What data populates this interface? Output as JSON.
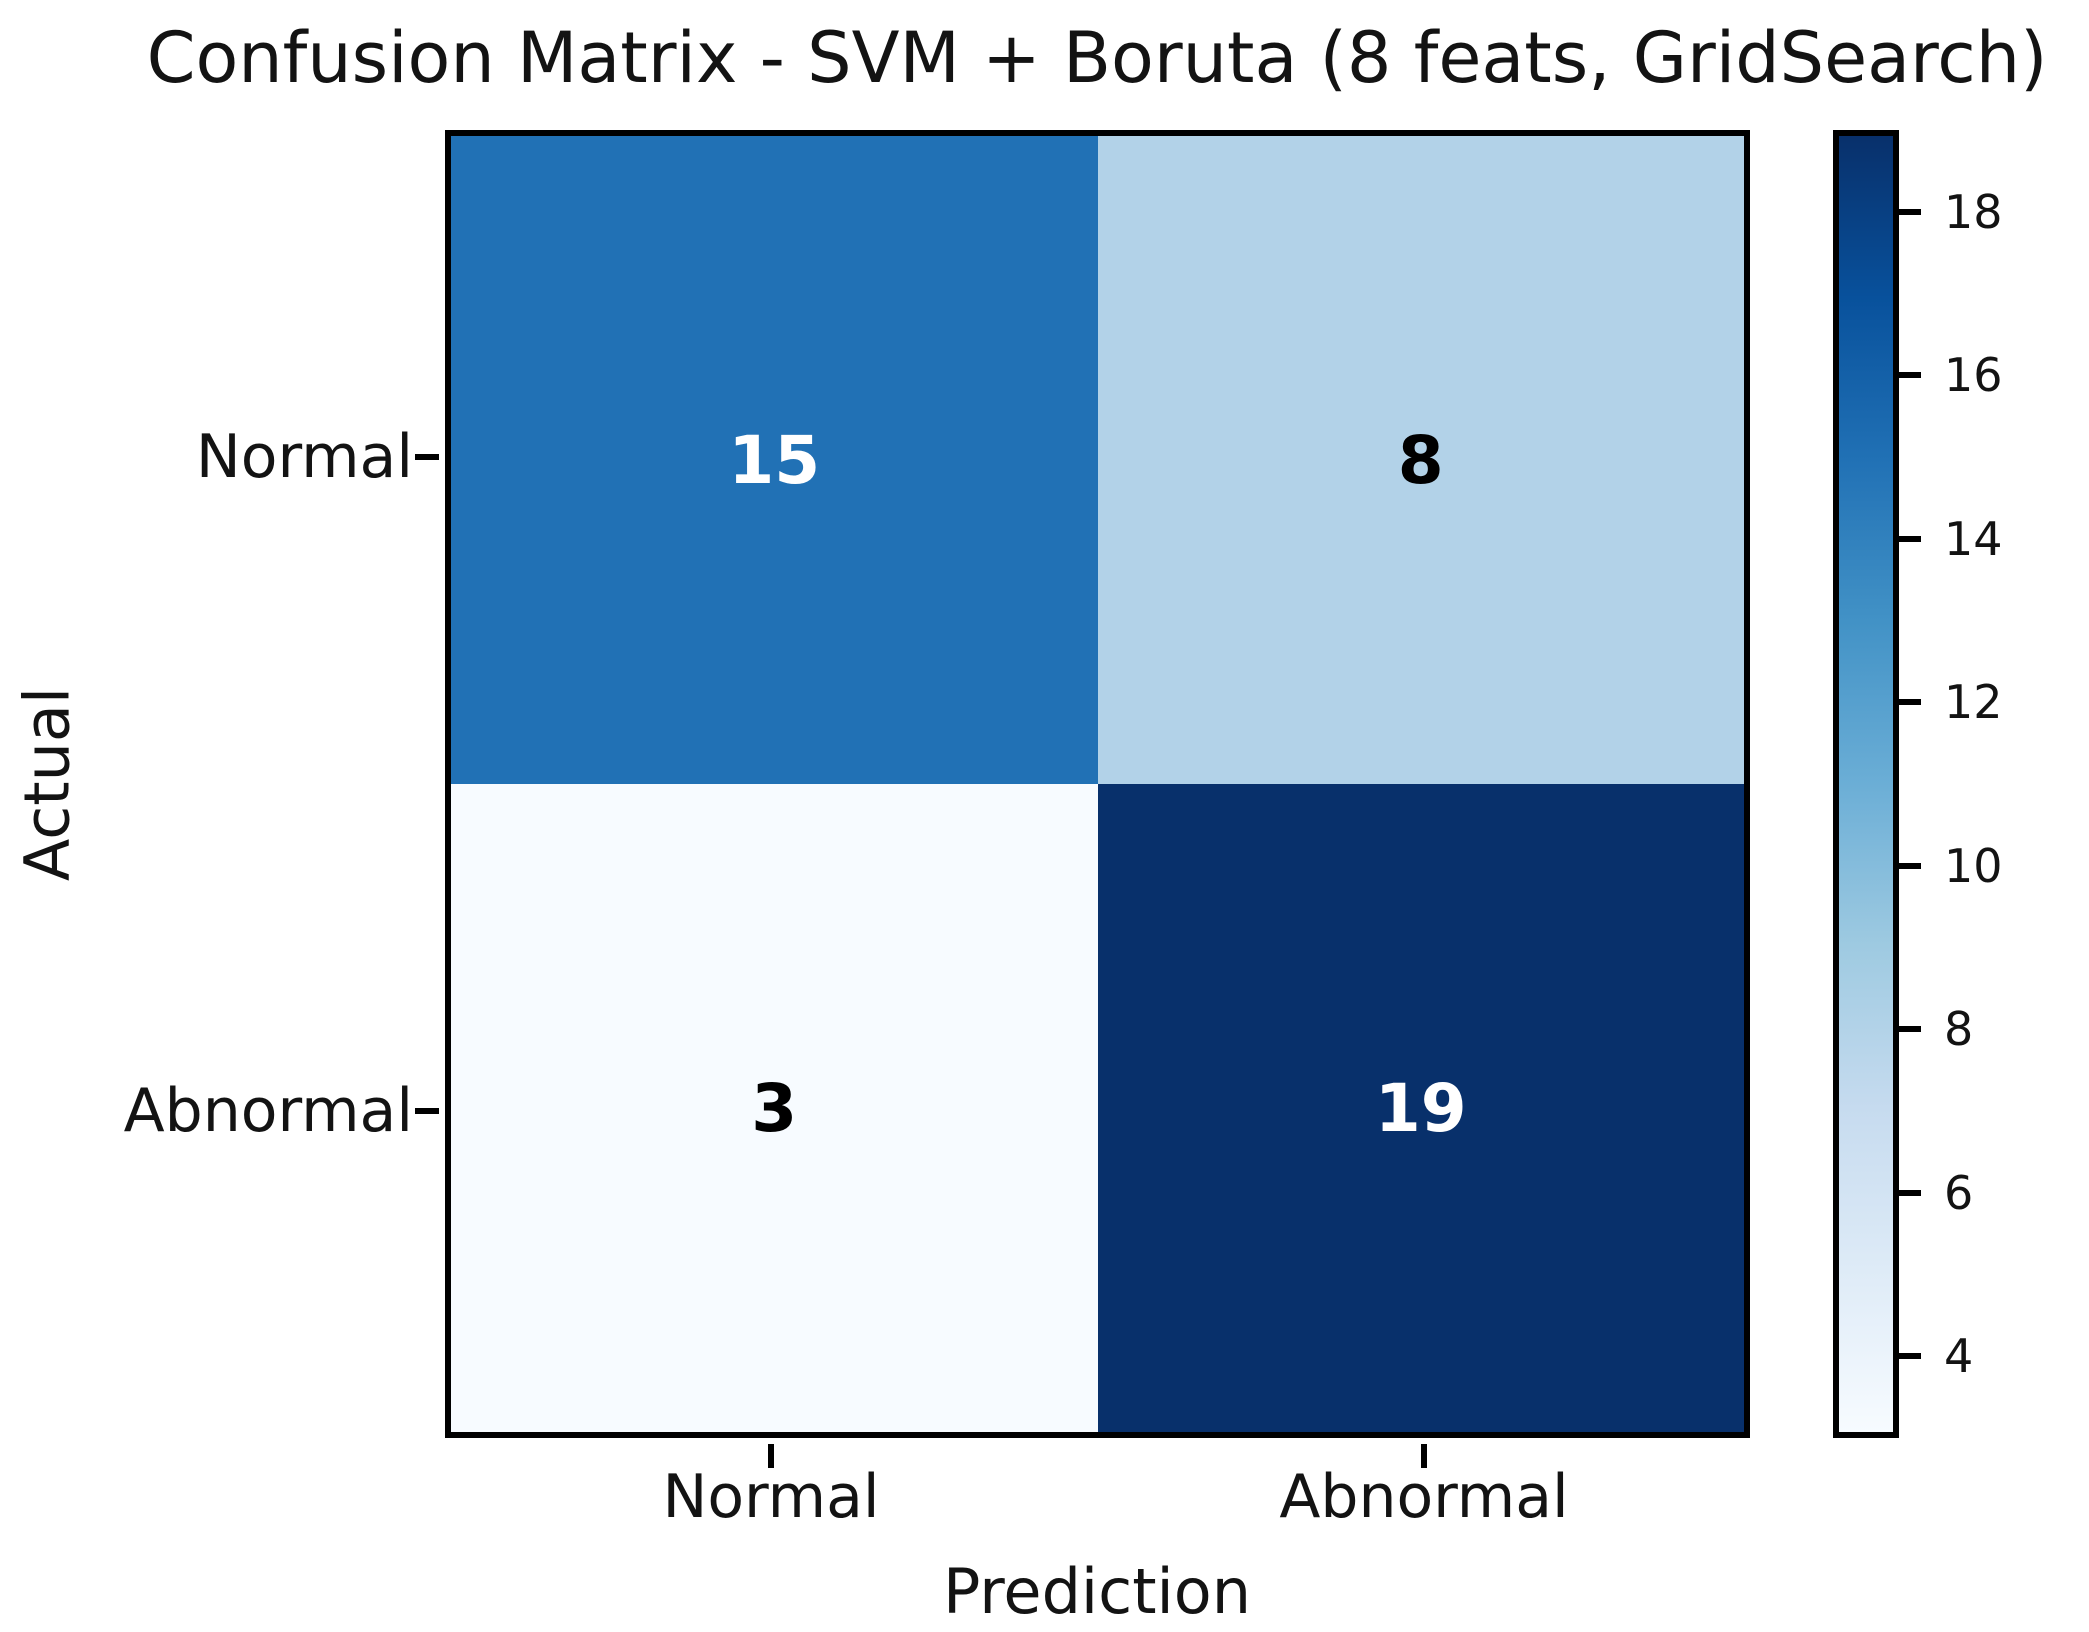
{
  "chart_data": {
    "type": "heatmap",
    "title": "Confusion Matrix - SVM + Boruta (8 feats, GridSearch)",
    "xlabel": "Prediction",
    "ylabel": "Actual",
    "x_categories": [
      "Normal",
      "Abnormal"
    ],
    "y_categories": [
      "Normal",
      "Abnormal"
    ],
    "matrix": [
      [
        15,
        8
      ],
      [
        3,
        19
      ]
    ],
    "vmin": 3,
    "vmax": 19,
    "colormap": "Blues",
    "colorbar_position": "right",
    "colorbar_ticks": [
      "4",
      "6",
      "8",
      "10",
      "12",
      "14",
      "16",
      "18"
    ],
    "cell_colors": [
      [
        "#2171b5",
        "#b2d2e8"
      ],
      [
        "#f7fbff",
        "#08306b"
      ]
    ],
    "cell_text_colors": [
      [
        "#ffffff",
        "#000000"
      ],
      [
        "#000000",
        "#ffffff"
      ]
    ],
    "colorbar_gradient": "linear-gradient(to bottom, #08306b 0%, #08519c 12.5%, #2171b5 25%, #4292c6 37.5%, #6baed6 50%, #9ecae1 62.5%, #c6dbef 75%, #deebf7 87.5%, #f7fbff 100%)",
    "border_color": "#000000"
  }
}
